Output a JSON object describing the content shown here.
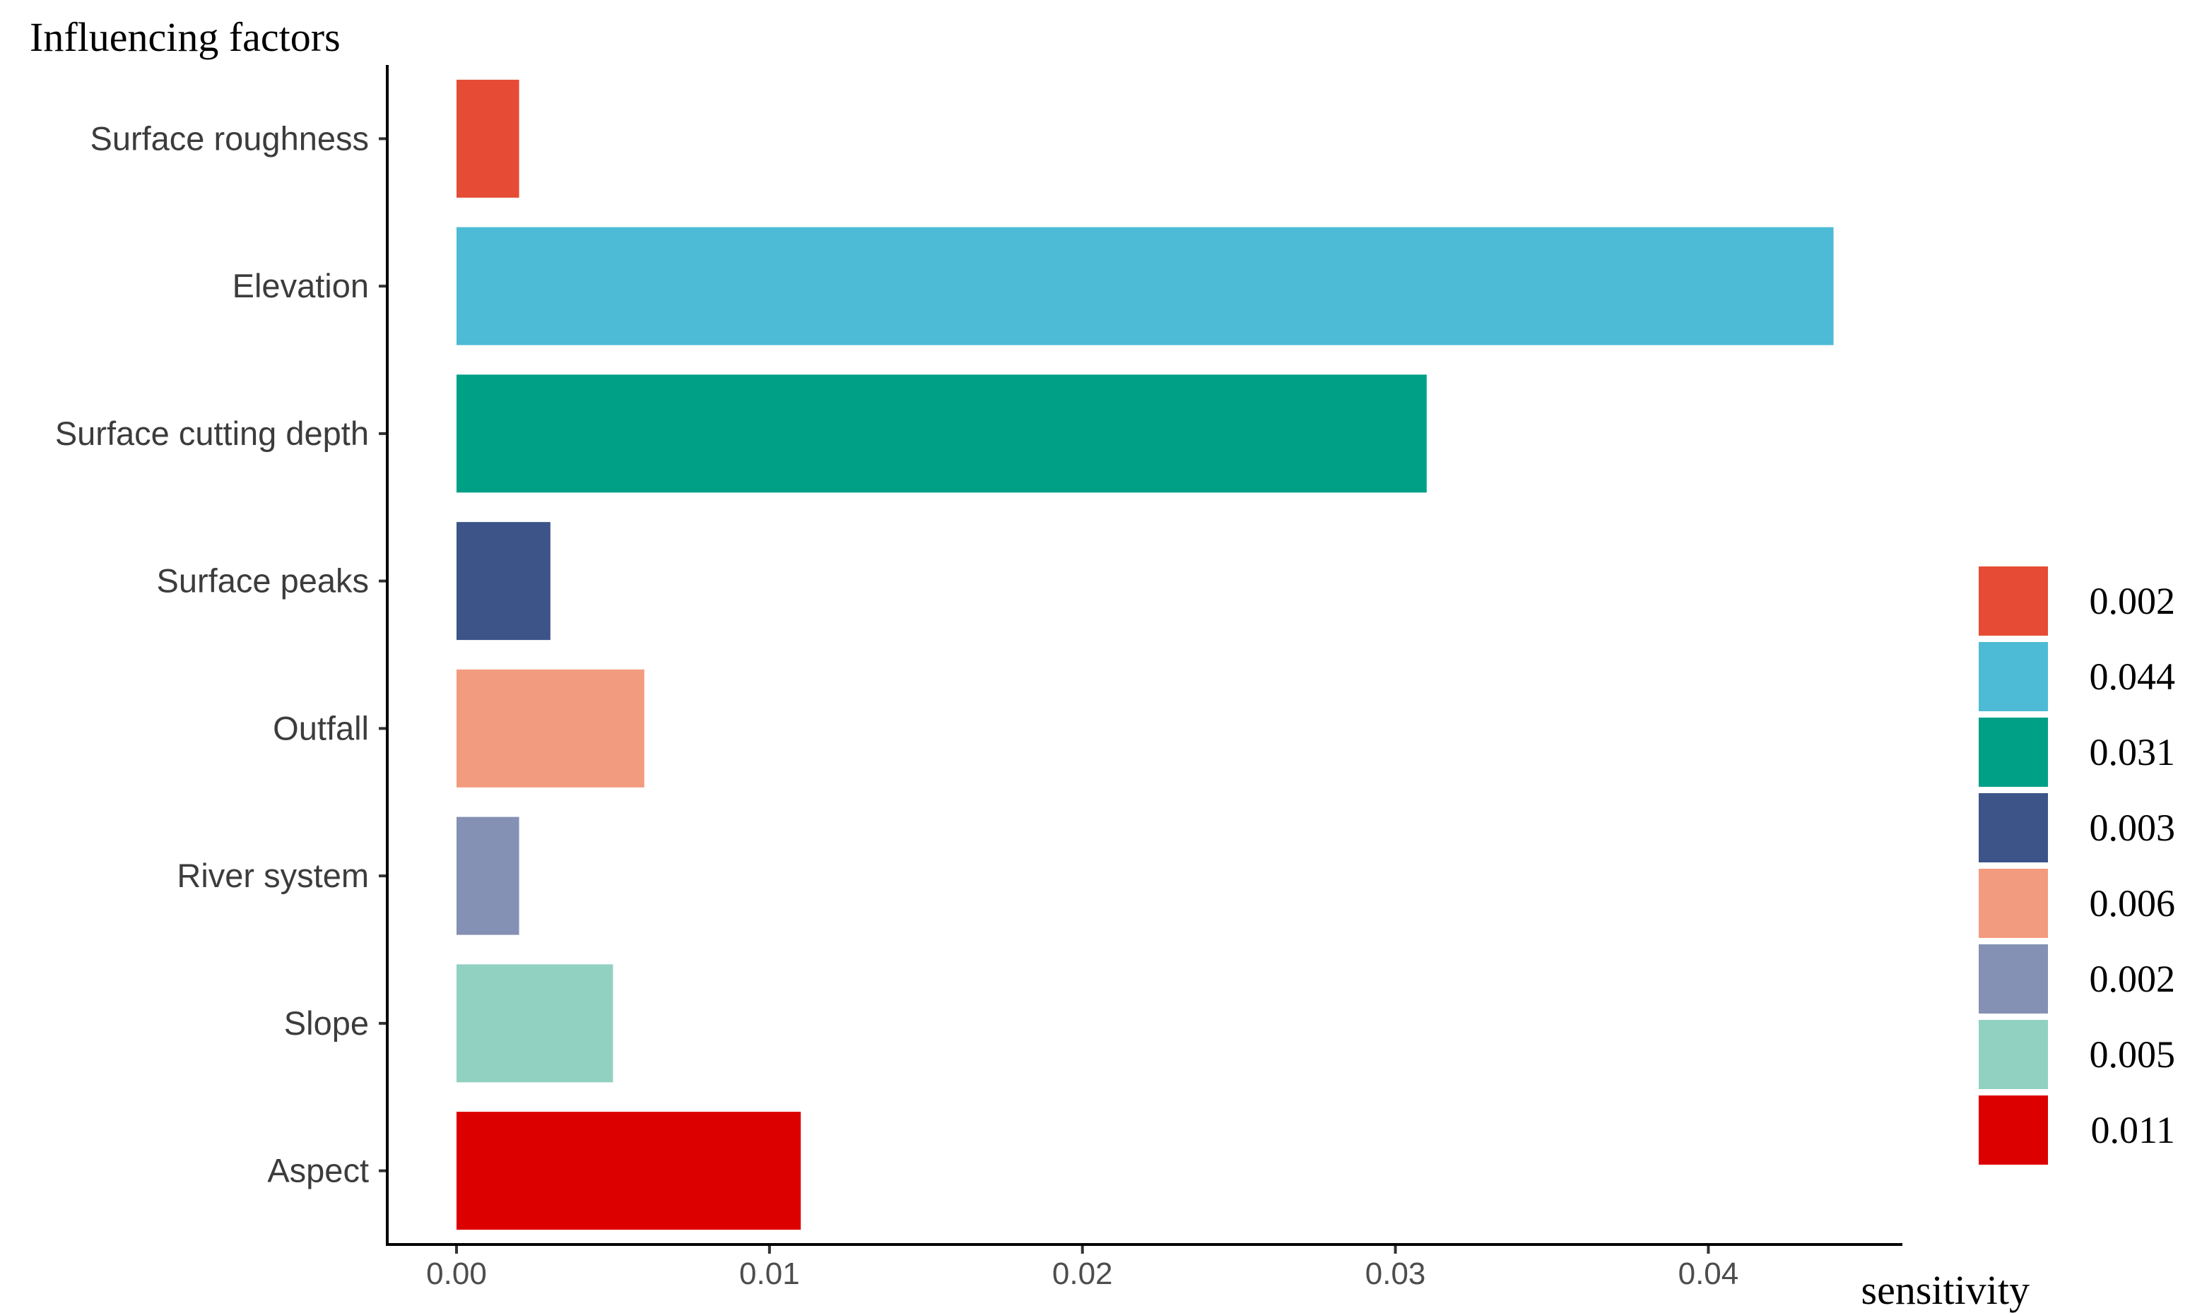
{
  "chart_data": {
    "type": "bar",
    "orientation": "horizontal",
    "ylabel": "Influencing factors",
    "xlabel": "sensitivity",
    "categories": [
      "Surface roughness",
      "Elevation",
      "Surface cutting depth",
      "Surface peaks",
      "Outfall",
      "River system",
      "Slope",
      "Aspect"
    ],
    "values": [
      0.002,
      0.044,
      0.031,
      0.003,
      0.006,
      0.002,
      0.005,
      0.011
    ],
    "colors": [
      "#E64B35",
      "#4DBBD5",
      "#00A087",
      "#3C5488",
      "#F39B7F",
      "#8491B4",
      "#91D1C2",
      "#DC0000"
    ],
    "xlim": [
      0,
      0.0462
    ],
    "xticks": [
      0.0,
      0.01,
      0.02,
      0.03,
      0.04
    ],
    "xtick_labels": [
      "0.00",
      "0.01",
      "0.02",
      "0.03",
      "0.04"
    ],
    "legend": {
      "position": "right",
      "entries": [
        "0.002",
        "0.044",
        "0.031",
        "0.003",
        "0.006",
        "0.002",
        "0.005",
        "0.011"
      ]
    },
    "grid": false
  }
}
